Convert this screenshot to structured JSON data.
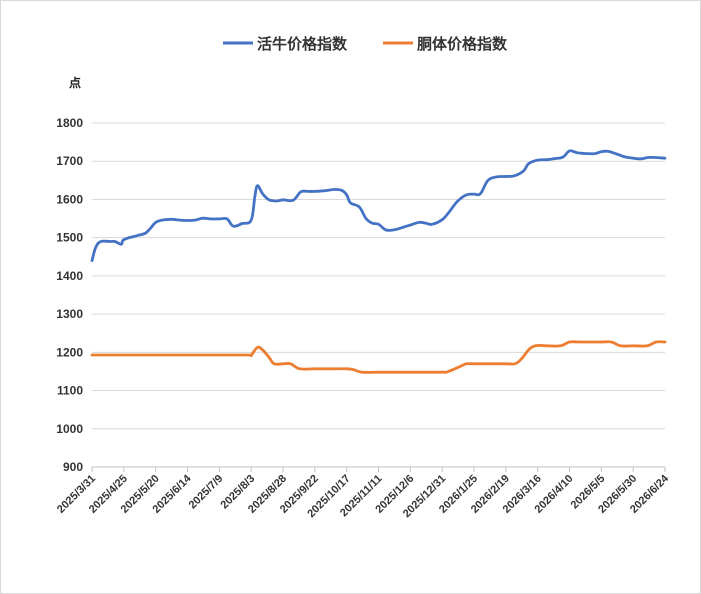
{
  "chart_data": {
    "type": "line",
    "ylabel": "点",
    "ylim": [
      900,
      1800
    ],
    "yticks": [
      900,
      1000,
      1100,
      1200,
      1300,
      1400,
      1500,
      1600,
      1700,
      1800
    ],
    "grid": true,
    "legend_position": "top",
    "x_start": "2025/3/31",
    "x_end": "2026/6/24",
    "x_tick_labels": [
      "2025/3/31",
      "2025/4/25",
      "2025/5/20",
      "2025/6/14",
      "2025/7/9",
      "2025/8/3",
      "2025/8/28",
      "2025/9/22",
      "2025/10/17",
      "2025/11/11",
      "2025/12/6",
      "2025/12/31",
      "2026/1/25",
      "2026/2/19",
      "2026/3/16",
      "2026/4/10",
      "2026/5/5",
      "2026/5/30",
      "2026/6/24"
    ],
    "series": [
      {
        "name": "活牛价格指数",
        "color": "#4472C4",
        "points": [
          [
            "2025/3/31",
            1440
          ],
          [
            "2025/4/3",
            1475
          ],
          [
            "2025/4/7",
            1490
          ],
          [
            "2025/4/14",
            1490
          ],
          [
            "2025/4/18",
            1490
          ],
          [
            "2025/4/23",
            1483
          ],
          [
            "2025/4/25",
            1495
          ],
          [
            "2025/5/5",
            1505
          ],
          [
            "2025/5/12",
            1512
          ],
          [
            "2025/5/16",
            1525
          ],
          [
            "2025/5/20",
            1540
          ],
          [
            "2025/5/25",
            1546
          ],
          [
            "2025/6/1",
            1548
          ],
          [
            "2025/6/8",
            1546
          ],
          [
            "2025/6/14",
            1545
          ],
          [
            "2025/6/20",
            1546
          ],
          [
            "2025/6/26",
            1551
          ],
          [
            "2025/7/2",
            1549
          ],
          [
            "2025/7/9",
            1549
          ],
          [
            "2025/7/15",
            1549
          ],
          [
            "2025/7/20",
            1530
          ],
          [
            "2025/7/27",
            1537
          ],
          [
            "2025/8/3",
            1546
          ],
          [
            "2025/8/6",
            1610
          ],
          [
            "2025/8/8",
            1636
          ],
          [
            "2025/8/12",
            1615
          ],
          [
            "2025/8/17",
            1599
          ],
          [
            "2025/8/23",
            1596
          ],
          [
            "2025/8/28",
            1599
          ],
          [
            "2025/9/5",
            1598
          ],
          [
            "2025/9/11",
            1620
          ],
          [
            "2025/9/17",
            1621
          ],
          [
            "2025/9/22",
            1621
          ],
          [
            "2025/9/30",
            1623
          ],
          [
            "2025/10/7",
            1626
          ],
          [
            "2025/10/13",
            1624
          ],
          [
            "2025/10/17",
            1612
          ],
          [
            "2025/10/20",
            1591
          ],
          [
            "2025/10/27",
            1580
          ],
          [
            "2025/11/1",
            1551
          ],
          [
            "2025/11/6",
            1538
          ],
          [
            "2025/11/11",
            1535
          ],
          [
            "2025/11/17",
            1520
          ],
          [
            "2025/11/24",
            1521
          ],
          [
            "2025/12/1",
            1528
          ],
          [
            "2025/12/6",
            1533
          ],
          [
            "2025/12/13",
            1540
          ],
          [
            "2025/12/18",
            1538
          ],
          [
            "2025/12/23",
            1535
          ],
          [
            "2025/12/31",
            1547
          ],
          [
            "2026/1/5",
            1565
          ],
          [
            "2026/1/12",
            1595
          ],
          [
            "2026/1/19",
            1612
          ],
          [
            "2026/1/25",
            1614
          ],
          [
            "2026/1/30",
            1615
          ],
          [
            "2026/2/5",
            1650
          ],
          [
            "2026/2/12",
            1659
          ],
          [
            "2026/2/19",
            1660
          ],
          [
            "2026/2/26",
            1662
          ],
          [
            "2026/3/5",
            1675
          ],
          [
            "2026/3/9",
            1694
          ],
          [
            "2026/3/16",
            1703
          ],
          [
            "2026/3/23",
            1704
          ],
          [
            "2026/3/30",
            1707
          ],
          [
            "2026/4/5",
            1711
          ],
          [
            "2026/4/10",
            1727
          ],
          [
            "2026/4/16",
            1722
          ],
          [
            "2026/4/23",
            1720
          ],
          [
            "2026/4/30",
            1720
          ],
          [
            "2026/5/5",
            1725
          ],
          [
            "2026/5/10",
            1726
          ],
          [
            "2026/5/17",
            1719
          ],
          [
            "2026/5/24",
            1711
          ],
          [
            "2026/5/30",
            1708
          ],
          [
            "2026/6/5",
            1706
          ],
          [
            "2026/6/12",
            1710
          ],
          [
            "2026/6/24",
            1708
          ]
        ]
      },
      {
        "name": "胴体价格指数",
        "color": "#ED7D31",
        "points": [
          [
            "2025/3/31",
            1193
          ],
          [
            "2025/4/25",
            1193
          ],
          [
            "2025/5/20",
            1193
          ],
          [
            "2025/6/14",
            1193
          ],
          [
            "2025/7/9",
            1193
          ],
          [
            "2025/8/1",
            1193
          ],
          [
            "2025/8/3",
            1193
          ],
          [
            "2025/8/8",
            1213
          ],
          [
            "2025/8/12",
            1206
          ],
          [
            "2025/8/17",
            1187
          ],
          [
            "2025/8/21",
            1170
          ],
          [
            "2025/8/28",
            1170
          ],
          [
            "2025/9/3",
            1170
          ],
          [
            "2025/9/10",
            1157
          ],
          [
            "2025/9/22",
            1157
          ],
          [
            "2025/10/7",
            1157
          ],
          [
            "2025/10/17",
            1157
          ],
          [
            "2025/10/22",
            1155
          ],
          [
            "2025/10/29",
            1148
          ],
          [
            "2025/11/11",
            1148
          ],
          [
            "2025/12/6",
            1148
          ],
          [
            "2025/12/31",
            1148
          ],
          [
            "2026/1/5",
            1150
          ],
          [
            "2026/1/14",
            1163
          ],
          [
            "2026/1/19",
            1170
          ],
          [
            "2026/1/25",
            1170
          ],
          [
            "2026/2/19",
            1170
          ],
          [
            "2026/2/26",
            1170
          ],
          [
            "2026/3/3",
            1182
          ],
          [
            "2026/3/10",
            1210
          ],
          [
            "2026/3/16",
            1218
          ],
          [
            "2026/3/23",
            1217
          ],
          [
            "2026/4/3",
            1217
          ],
          [
            "2026/4/10",
            1227
          ],
          [
            "2026/4/18",
            1227
          ],
          [
            "2026/5/5",
            1227
          ],
          [
            "2026/5/13",
            1227
          ],
          [
            "2026/5/20",
            1217
          ],
          [
            "2026/5/30",
            1217
          ],
          [
            "2026/6/10",
            1217
          ],
          [
            "2026/6/17",
            1227
          ],
          [
            "2026/6/24",
            1227
          ]
        ]
      }
    ]
  }
}
